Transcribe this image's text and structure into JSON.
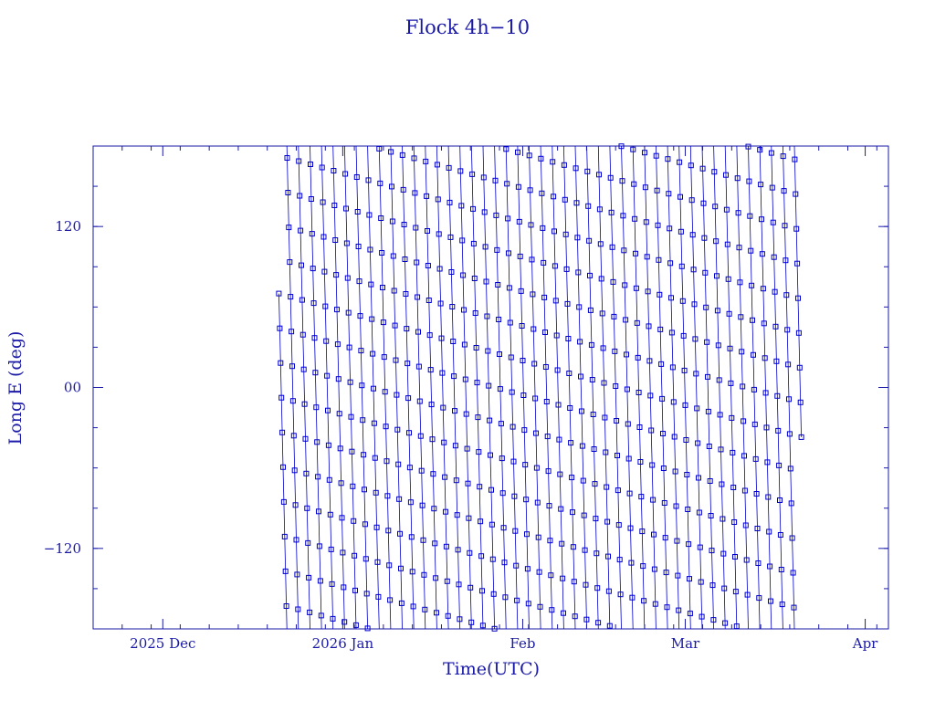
{
  "colors": {
    "axis": "#1a1aa6",
    "series": "#0000cc",
    "text": "#1a1aa6"
  },
  "chart_data": {
    "type": "line",
    "title": "Flock 4h−10",
    "xlabel": "Time(UTC)",
    "ylabel": "Long E (deg)",
    "xlim": [
      "2025-11-19",
      "2026-04-05"
    ],
    "ylim": [
      -180,
      180
    ],
    "x_ticks": [
      {
        "date": "2025-12-01",
        "label": "2025 Dec"
      },
      {
        "date": "2026-01-01",
        "label": "2026 Jan"
      },
      {
        "date": "2026-02-01",
        "label": "Feb"
      },
      {
        "date": "2026-03-01",
        "label": "Mar"
      },
      {
        "date": "2026-04-01",
        "label": "Apr"
      }
    ],
    "y_ticks": [
      {
        "value": 120,
        "label": "120"
      },
      {
        "value": 0,
        "label": "00"
      },
      {
        "value": -120,
        "label": "−120"
      }
    ],
    "marker": "open-square",
    "grid": false,
    "series": [
      {
        "x_start": "2025-12-21",
        "x_end": "2026-03-21",
        "drift_deg_per_day": -182,
        "longitude_start": 70,
        "longitude_end": -37,
        "points_per_day": 7
      }
    ]
  }
}
